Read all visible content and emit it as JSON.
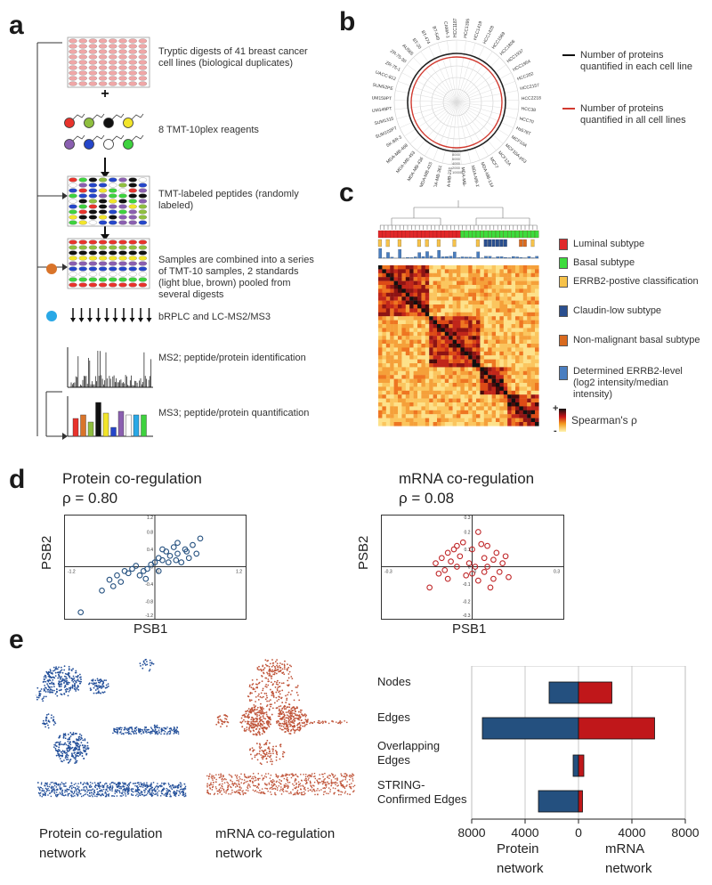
{
  "figure": {
    "panels": {
      "a": "a",
      "b": "b",
      "c": "c",
      "d": "d",
      "e": "e"
    }
  },
  "panel_a": {
    "steps": [
      "Tryptic digests of 41 breast cancer cell lines (biological duplicates)",
      "8 TMT-10plex reagents",
      "TMT-labeled peptides (randomly labeled)",
      "Samples are combined into a series of TMT-10 samples, 2 standards (light blue, brown) pooled from several digests",
      "bRPLC and LC-MS2/MS3",
      "MS2; peptide/protein identification",
      "MS3; peptide/protein quantification"
    ],
    "plus": "+",
    "reagent_colors": [
      "#e8332c",
      "#8fbf3f",
      "#111111",
      "#f2e52a",
      "#8a5fb0",
      "#2546c9",
      "#ffffff",
      "#3ed23e"
    ],
    "standard_colors": {
      "brown": "#d9742a",
      "light_blue": "#29a8e6"
    }
  },
  "panel_b": {
    "legend": [
      {
        "label": "Number of proteins quantified in each cell line",
        "color": "#111111"
      },
      {
        "label": "Number of proteins quantified in all cell lines",
        "color": "#d23a30"
      }
    ],
    "cell_lines": [
      "HCC1187",
      "HCC1395",
      "HCC1419",
      "HCC1428",
      "HCC1569",
      "HCC1806",
      "HCC1937",
      "HCC1954",
      "HCC202",
      "HCC2157",
      "HCC2218",
      "HCC38",
      "HCC70",
      "Hs578T",
      "MCF10A",
      "MCF10A-p53",
      "MCF12A",
      "MCF7",
      "MDA-MB-134",
      "MDA-MB-157",
      "MDA-MB-175",
      "MDA-MB-231",
      "MDA-MB-361",
      "MDA-MB-415",
      "MDA-MB-436",
      "MDA-MB-453",
      "MDA-MB-468",
      "SK-BR-3",
      "SUM102PT",
      "SUM1315",
      "SUM149PT",
      "SUM159PT",
      "SUM52PE",
      "UACC-812",
      "ZR-75-1",
      "ZR-75-30",
      "AU565",
      "BT-20",
      "BT-474",
      "BT-549",
      "CAMA-1"
    ],
    "radial_ticks": [
      "0000",
      "8000",
      "6000",
      "4000",
      "2000",
      "10000"
    ]
  },
  "panel_c": {
    "legend": [
      {
        "label": "Luminal subtype",
        "color": "#e0282a"
      },
      {
        "label": "Basal subtype",
        "color": "#3ddc3d"
      },
      {
        "label": "ERRB2-postive classification",
        "color": "#f6c24a"
      },
      {
        "label": "Claudin-low subtype",
        "color": "#2a4f8f"
      },
      {
        "label": "Non-malignant basal subtype",
        "color": "#d96a1e"
      },
      {
        "label": "Determined ERRB2-level (log2 intensity/median intensity)",
        "color": "#4a7ec0"
      }
    ],
    "scale_label": "Spearman's ρ",
    "scale_plus": "+",
    "scale_minus": "-"
  },
  "panel_d": {
    "protein": {
      "title": "Protein co-regulation",
      "rho": "ρ = 0.80",
      "xlabel": "PSB1",
      "ylabel": "PSB2",
      "color": "#24507f"
    },
    "mrna": {
      "title": "mRNA co-regulation",
      "rho": "ρ = 0.08",
      "xlabel": "PSB1",
      "ylabel": "PSB2",
      "color": "#c0282a"
    }
  },
  "panel_e": {
    "protein_caption": "Protein co-regulation network",
    "mrna_caption": "mRNA co-regulation network",
    "protein_color": "#24509a",
    "mrna_color": "#c0553a",
    "xlabel_left": "Protein network",
    "xlabel_right": "mRNA network"
  },
  "chart_data": [
    {
      "type": "scatter",
      "title": "Protein co-regulation",
      "annotation": "ρ = 0.80",
      "xlabel": "PSB1",
      "ylabel": "PSB2",
      "xlim": [
        -1.2,
        1.2
      ],
      "ylim": [
        -1.2,
        1.2
      ],
      "x_ticks": [
        "-1.2",
        "0",
        "1.2"
      ],
      "y_ticks": [
        "1.2",
        "0.8",
        "0.4",
        "0",
        "-0.4",
        "-0.8",
        "-1.2"
      ],
      "points": [
        [
          -0.98,
          -1.05
        ],
        [
          -0.6,
          -0.3
        ],
        [
          -0.5,
          -0.2
        ],
        [
          -0.45,
          -0.35
        ],
        [
          -0.4,
          -0.1
        ],
        [
          -0.35,
          -0.15
        ],
        [
          -0.3,
          -0.05
        ],
        [
          -0.25,
          0.02
        ],
        [
          -0.2,
          -0.2
        ],
        [
          -0.15,
          -0.1
        ],
        [
          -0.1,
          -0.05
        ],
        [
          -0.05,
          0.05
        ],
        [
          0.0,
          0.1
        ],
        [
          0.05,
          0.2
        ],
        [
          0.1,
          0.15
        ],
        [
          0.15,
          0.35
        ],
        [
          0.2,
          0.25
        ],
        [
          0.25,
          0.45
        ],
        [
          0.3,
          0.3
        ],
        [
          0.35,
          0.1
        ],
        [
          0.4,
          0.4
        ],
        [
          0.45,
          0.2
        ],
        [
          0.5,
          0.5
        ],
        [
          0.55,
          0.3
        ],
        [
          0.6,
          0.65
        ],
        [
          0.3,
          0.55
        ],
        [
          0.1,
          0.4
        ],
        [
          -0.55,
          -0.45
        ],
        [
          -0.7,
          -0.55
        ],
        [
          0.05,
          -0.1
        ],
        [
          0.18,
          0.1
        ],
        [
          0.42,
          0.35
        ],
        [
          -0.12,
          -0.28
        ],
        [
          0.28,
          0.15
        ]
      ]
    },
    {
      "type": "scatter",
      "title": "mRNA co-regulation",
      "annotation": "ρ = 0.08",
      "xlabel": "PSB1",
      "ylabel": "PSB2",
      "xlim": [
        -0.3,
        0.3
      ],
      "ylim": [
        -0.3,
        0.3
      ],
      "x_ticks": [
        "-0.3",
        "0",
        "0.3"
      ],
      "y_ticks": [
        "0.3",
        "0.2",
        "0.1",
        "0",
        "-0.1",
        "-0.2",
        "-0.3"
      ],
      "points": [
        [
          -0.14,
          -0.12
        ],
        [
          -0.12,
          0.02
        ],
        [
          -0.1,
          0.05
        ],
        [
          -0.09,
          -0.02
        ],
        [
          -0.08,
          0.08
        ],
        [
          -0.07,
          0.03
        ],
        [
          -0.06,
          0.1
        ],
        [
          -0.05,
          0.0
        ],
        [
          -0.04,
          0.06
        ],
        [
          -0.03,
          0.14
        ],
        [
          -0.02,
          -0.05
        ],
        [
          -0.01,
          0.02
        ],
        [
          0.0,
          0.1
        ],
        [
          0.01,
          0.0
        ],
        [
          0.02,
          -0.08
        ],
        [
          0.03,
          0.13
        ],
        [
          0.04,
          0.05
        ],
        [
          0.05,
          0.0
        ],
        [
          0.06,
          -0.12
        ],
        [
          0.07,
          0.04
        ],
        [
          0.08,
          0.08
        ],
        [
          0.09,
          -0.03
        ],
        [
          0.1,
          0.02
        ],
        [
          0.12,
          -0.06
        ],
        [
          0.02,
          0.2
        ],
        [
          -0.05,
          0.12
        ],
        [
          0.05,
          0.12
        ],
        [
          -0.08,
          -0.07
        ],
        [
          0.0,
          -0.04
        ],
        [
          0.07,
          -0.07
        ],
        [
          0.11,
          0.06
        ],
        [
          -0.11,
          -0.04
        ],
        [
          0.04,
          -0.03
        ]
      ]
    },
    {
      "type": "bar",
      "orientation": "horizontal",
      "categories": [
        "Nodes",
        "Edges",
        "Overlapping Edges",
        "STRING-Confirmed  Edges"
      ],
      "series": [
        {
          "name": "Protein network",
          "values": [
            2200,
            7200,
            400,
            3000
          ],
          "color": "#24507f"
        },
        {
          "name": "mRNA network",
          "values": [
            2500,
            5700,
            400,
            300
          ],
          "color": "#c0171a"
        }
      ],
      "xlim": [
        -8000,
        8000
      ],
      "x_ticks": [
        "8000",
        "4000",
        "0",
        "4000",
        "8000"
      ],
      "xlabel": "Protein network | mRNA network"
    }
  ]
}
